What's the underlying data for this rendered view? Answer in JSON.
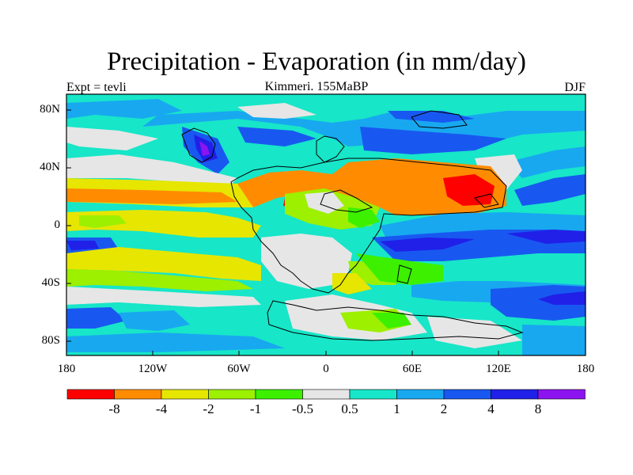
{
  "chart_data": {
    "type": "heatmap",
    "title": "Precipitation - Evaporation (in mm/day)",
    "left_string": "Expt = tevli",
    "center_string": "Kimmeri. 155MaBP",
    "right_string": "DJF",
    "x_ticks": [
      "180",
      "120W",
      "60W",
      "0",
      "60E",
      "120E",
      "180"
    ],
    "y_ticks": [
      "80N",
      "40N",
      "0",
      "40S",
      "80S"
    ],
    "colorbar": {
      "labels": [
        "-8",
        "-4",
        "-2",
        "-1",
        "-0.5",
        "0.5",
        "1",
        "2",
        "4",
        "8"
      ],
      "colors": [
        "#ff0000",
        "#ff8c00",
        "#e6e600",
        "#9cf000",
        "#3cf000",
        "#e6e6e6",
        "#17e6c8",
        "#18a8f0",
        "#1858f0",
        "#2020e8",
        "#8c14f0"
      ]
    }
  }
}
